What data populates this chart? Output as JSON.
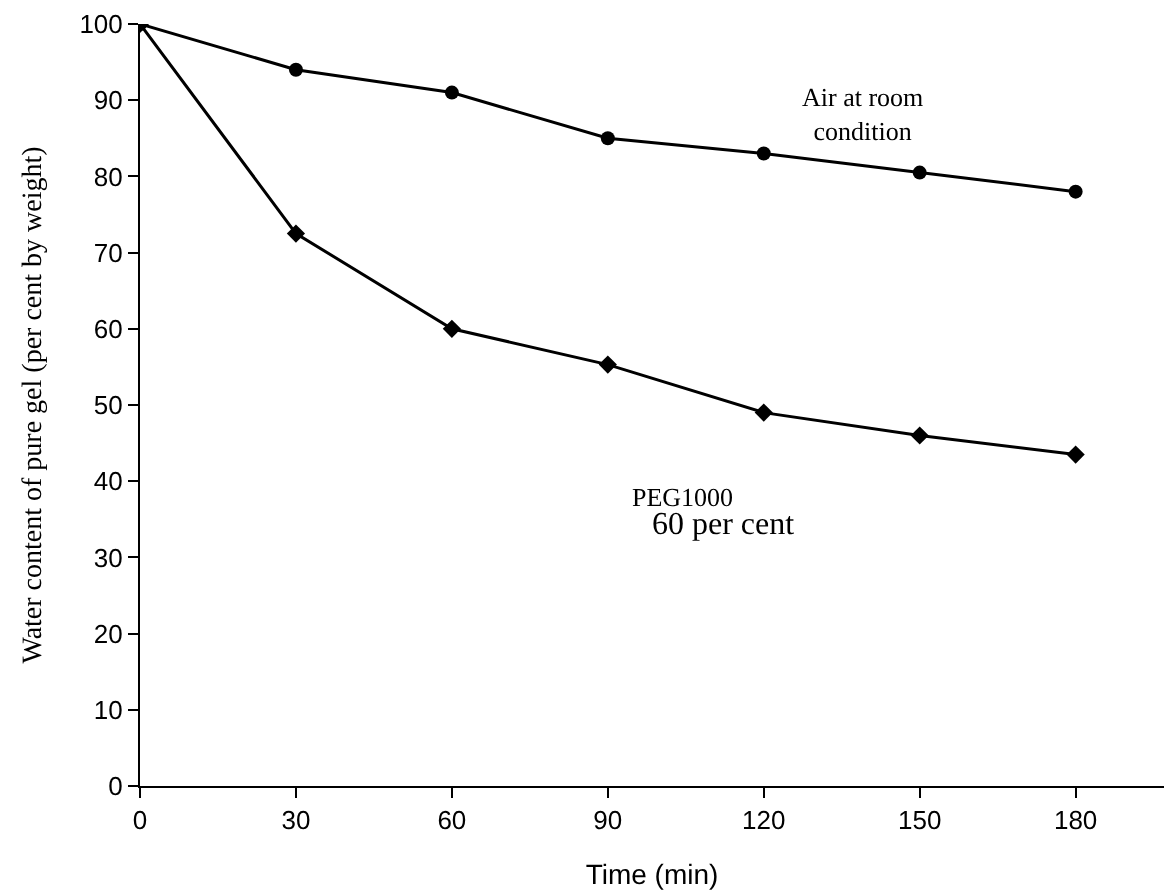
{
  "chart_data": {
    "type": "line",
    "x": [
      0,
      30,
      60,
      90,
      120,
      150,
      180
    ],
    "series": [
      {
        "color": "#000000",
        "marker": "diamond",
        "values": [
          100,
          72.5,
          60,
          55.3,
          49,
          46,
          43.5
        ]
      },
      {
        "color": "#000000",
        "marker": "circle",
        "values": [
          100,
          94,
          91,
          85,
          83,
          80.5,
          78
        ]
      }
    ],
    "xlabel": "Time (min)",
    "ylabel": "Water content of pure gel (per cent by weight)",
    "xlim": [
      0,
      197
    ],
    "xticks": [
      0,
      30,
      60,
      90,
      120,
      150,
      180
    ],
    "ylim": [
      0,
      100
    ],
    "yticks": [
      0,
      10,
      20,
      30,
      40,
      50,
      60,
      70,
      80,
      90,
      100
    ],
    "grid": false,
    "line_style": "solid",
    "annotations": [
      "Air at room\ncondition",
      "PEG1000",
      "60 per cent"
    ]
  }
}
